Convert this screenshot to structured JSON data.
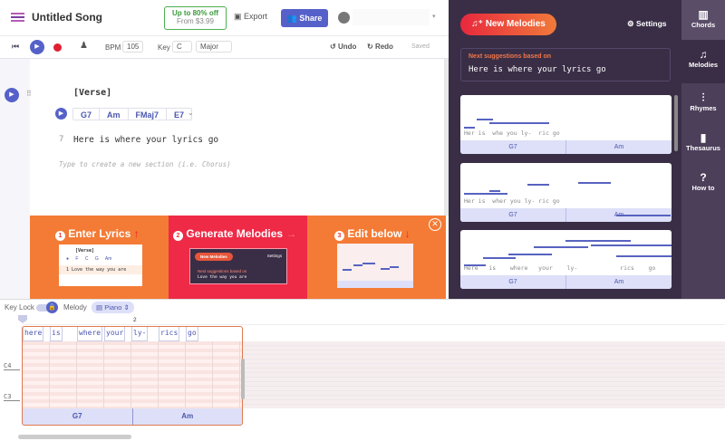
{
  "header": {
    "title": "Untitled Song",
    "promo_line1": "Up to 80% off",
    "promo_line2": "From $3.99",
    "export": "Export",
    "share": "Share"
  },
  "toolbar": {
    "bpm_label": "BPM",
    "bpm": "105",
    "key_label": "Key",
    "key": "C",
    "mode": "Major",
    "undo": "Undo",
    "redo": "Redo",
    "status": "Saved"
  },
  "editor": {
    "section": "[Verse]",
    "chords": [
      "G7",
      "Am",
      "FMaj7",
      "E7"
    ],
    "line_number": "7",
    "lyric": "Here is where your lyrics go",
    "new_section_placeholder": "Type to create a new section (i.e. Chorus)"
  },
  "banner": {
    "steps": [
      {
        "num": "1",
        "label": "Enter Lyrics",
        "arrow": "↑"
      },
      {
        "num": "2",
        "label": "Generate Melodies",
        "arrow": "→"
      },
      {
        "num": "3",
        "label": "Edit below",
        "arrow": "↓"
      }
    ],
    "mini1": {
      "section": "[Verse]",
      "chords": [
        "F",
        "C",
        "G",
        "Am"
      ],
      "line": "1  Love the way you are"
    },
    "mini2": {
      "button": "New Melodies",
      "settings": "Settings",
      "caption": "Next suggestions based on",
      "line": "Love the way you are"
    }
  },
  "panel": {
    "new_melodies": "New Melodies",
    "settings": "Settings",
    "suggest_caption": "Next suggestions based on",
    "suggest_text": "Here is where your lyrics go",
    "cards": [
      {
        "lyrics": "Her is  whe you ly-  ric go",
        "chords": [
          "G7",
          "Am"
        ],
        "notes": [
          [
            0,
            1,
            13
          ],
          [
            1,
            1.5,
            9
          ],
          [
            2,
            2,
            11
          ],
          [
            3,
            2.5,
            11
          ],
          [
            5,
            2,
            11
          ],
          [
            7,
            0,
            13
          ]
        ]
      },
      {
        "lyrics": "Her is  wher you ly- ric go",
        "chords": [
          "G7",
          "Am"
        ],
        "notes": [
          [
            0,
            0,
            14
          ],
          [
            2,
            1,
            11
          ],
          [
            5,
            2,
            8
          ],
          [
            9,
            3,
            7
          ],
          [
            12,
            5,
            22
          ],
          [
            0,
            4,
            12
          ]
        ]
      },
      {
        "lyrics": "Here   is    where   your    ly-            rics    go",
        "chords": [
          "G7",
          "Am"
        ],
        "notes": [
          [
            0,
            2,
            14
          ],
          [
            1.5,
            3,
            11
          ],
          [
            3.5,
            4,
            9
          ],
          [
            5.5,
            5,
            6
          ],
          [
            8,
            6,
            3
          ],
          [
            10,
            8,
            5
          ],
          [
            12,
            9,
            10
          ]
        ]
      }
    ]
  },
  "sidetabs": [
    {
      "label": "Chords",
      "icon": "piano-icon"
    },
    {
      "label": "Melodies",
      "icon": "music-note-icon",
      "active": true
    },
    {
      "label": "Rhymes",
      "icon": "rhymes-icon"
    },
    {
      "label": "Thesaurus",
      "icon": "book-icon"
    },
    {
      "label": "How to",
      "icon": "help-icon"
    }
  ],
  "roll": {
    "key_lock": "Key Lock",
    "melody_label": "Melody",
    "instrument": "Piano",
    "bar_number": "2",
    "pitch_labels": [
      "C4",
      "C3"
    ],
    "lyric_words": [
      "here",
      "is",
      "where",
      "your",
      "ly-",
      "rics",
      "go"
    ],
    "chords": [
      "G7",
      "Am"
    ]
  },
  "colors": {
    "accent": "#5561c9",
    "panel": "#3a2e46",
    "banner": "#f47b36",
    "banner_active": "#ee2a47"
  }
}
